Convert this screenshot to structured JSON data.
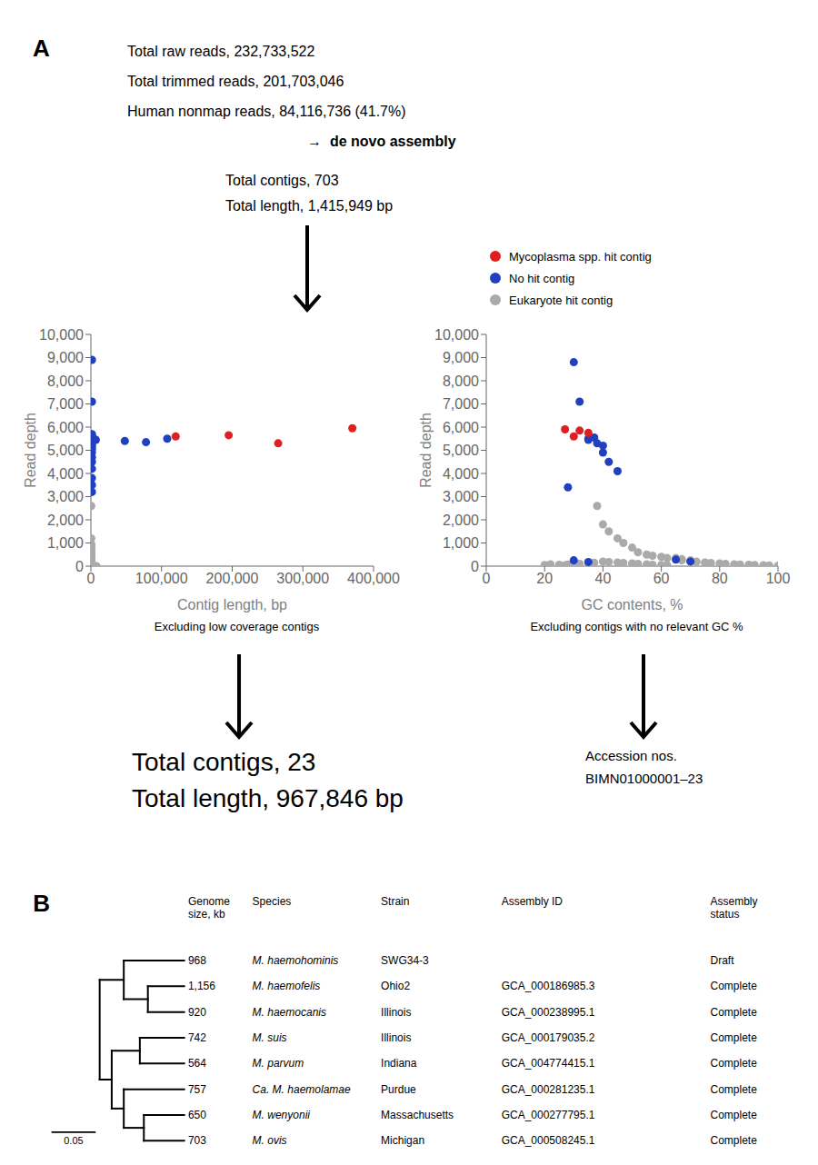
{
  "chart_data": [
    {
      "type": "text",
      "annotations": [
        "A",
        "Total raw reads, 232,733,522",
        "Total trimmed reads, 201,703,046",
        "Human nonmap reads, 84,116,736 (41.7%)",
        "→  de novo assembly",
        "Total contigs, 703",
        "Total length, 1,415,949 bp"
      ]
    },
    {
      "type": "scatter",
      "xlabel": "Contig length, bp",
      "ylabel": "Read depth",
      "annotations": [
        "Excluding low coverage contigs"
      ],
      "grid": false,
      "xlim": [
        0,
        400000
      ],
      "ylim": [
        0,
        10000
      ],
      "xticks": [
        0,
        {
          "value": 100000,
          "label": "100,000"
        },
        {
          "value": 200000,
          "label": "200,000"
        },
        {
          "value": 300000,
          "label": "300,000"
        },
        {
          "value": 400000,
          "label": "400,000"
        }
      ],
      "yticks": [
        0,
        {
          "value": 1000,
          "label": "1,000"
        },
        {
          "value": 2000,
          "label": "2,000"
        },
        {
          "value": 3000,
          "label": "3,000"
        },
        {
          "value": 4000,
          "label": "4,000"
        },
        {
          "value": 5000,
          "label": "5,000"
        },
        {
          "value": 6000,
          "label": "6,000"
        },
        {
          "value": 7000,
          "label": "7,000"
        },
        {
          "value": 8000,
          "label": "8,000"
        },
        {
          "value": 9000,
          "label": "9,000"
        },
        {
          "value": 10000,
          "label": "10,000"
        }
      ],
      "series": [
        {
          "name": "Mycoplasma spp. hit contig",
          "color": "#e02020",
          "x": [
            120000,
            195000,
            265000,
            370000
          ],
          "values": [
            5600,
            5650,
            5300,
            5950
          ]
        },
        {
          "name": "No hit contig",
          "color": "#2040c0",
          "x": [
            1500,
            1500,
            1500,
            1500,
            1500,
            4000,
            7000,
            48000,
            78000,
            108000,
            1500,
            1500,
            1500,
            1500,
            1500,
            1500,
            1500,
            1500,
            1500,
            1500
          ],
          "values": [
            8900,
            7100,
            5700,
            5600,
            5500,
            5500,
            5450,
            5400,
            5350,
            5500,
            5250,
            5150,
            5050,
            4900,
            4700,
            4500,
            4200,
            3800,
            3500,
            3200
          ]
        },
        {
          "name": "Eukaryote hit contig",
          "color": "#aaaaaa",
          "x": [
            500,
            500,
            500,
            500,
            500,
            500,
            500,
            500,
            500,
            500,
            500,
            500,
            500,
            500,
            500,
            500,
            500,
            500,
            500,
            500,
            500,
            500,
            500,
            500,
            500,
            500,
            500,
            500,
            500,
            500,
            500,
            500,
            500,
            500,
            500,
            500,
            500,
            500,
            500,
            500,
            500,
            500,
            500,
            500,
            500,
            500,
            500,
            500,
            500,
            500,
            2000,
            3000,
            4000,
            5000,
            6000,
            8000
          ],
          "values": [
            2600,
            1200,
            950,
            900,
            850,
            800,
            750,
            700,
            650,
            600,
            550,
            500,
            450,
            400,
            370,
            350,
            330,
            310,
            290,
            270,
            250,
            230,
            210,
            190,
            170,
            150,
            130,
            110,
            90,
            70,
            50,
            40,
            30,
            20,
            10,
            8,
            6,
            5,
            4,
            3,
            2,
            2,
            1,
            1,
            1,
            1,
            1,
            1,
            1,
            1,
            1,
            1,
            1,
            1,
            1,
            1
          ]
        }
      ]
    },
    {
      "type": "scatter",
      "xlabel": "GC contents, %",
      "ylabel": "Read depth",
      "annotations": [
        "Excluding contigs with no relevant GC %"
      ],
      "grid": false,
      "legend": "top",
      "xlim": [
        0,
        100
      ],
      "ylim": [
        0,
        10000
      ],
      "xticks": [
        0,
        20,
        40,
        60,
        80,
        100
      ],
      "yticks": [
        0,
        {
          "value": 1000,
          "label": "1,000"
        },
        {
          "value": 2000,
          "label": "2,000"
        },
        {
          "value": 3000,
          "label": "3,000"
        },
        {
          "value": 4000,
          "label": "4,000"
        },
        {
          "value": 5000,
          "label": "5,000"
        },
        {
          "value": 6000,
          "label": "6,000"
        },
        {
          "value": 7000,
          "label": "7,000"
        },
        {
          "value": 8000,
          "label": "8,000"
        },
        {
          "value": 9000,
          "label": "9,000"
        },
        {
          "value": 10000,
          "label": "10,000"
        }
      ],
      "series": [
        {
          "name": "Mycoplasma spp. hit contig",
          "color": "#e02020",
          "x": [
            27,
            30,
            32,
            35
          ],
          "values": [
            5900,
            5600,
            5850,
            5750
          ]
        },
        {
          "name": "No hit contig",
          "color": "#2040c0",
          "x": [
            30,
            32,
            35,
            35,
            37,
            38,
            40,
            40,
            42,
            45,
            28,
            30,
            35,
            65,
            70
          ],
          "values": [
            8800,
            7100,
            5500,
            5450,
            5550,
            5300,
            5200,
            4900,
            4500,
            4100,
            3400,
            250,
            180,
            280,
            200
          ]
        },
        {
          "name": "Eukaryote hit contig",
          "color": "#aaaaaa",
          "x": [
            20,
            22,
            25,
            27,
            28,
            30,
            32,
            35,
            37,
            40,
            42,
            45,
            47,
            50,
            52,
            55,
            57,
            60,
            62,
            65,
            67,
            70,
            72,
            75,
            38,
            40,
            42,
            45,
            47,
            50,
            52,
            55,
            57,
            60,
            62,
            65,
            67,
            70,
            72,
            75,
            77,
            80,
            82,
            85,
            87,
            90,
            92,
            95,
            97,
            100
          ],
          "values": [
            50,
            80,
            60,
            40,
            70,
            90,
            100,
            120,
            150,
            200,
            180,
            160,
            140,
            120,
            100,
            80,
            60,
            50,
            40,
            350,
            300,
            250,
            200,
            150,
            2600,
            1800,
            1500,
            1200,
            1000,
            800,
            600,
            500,
            450,
            400,
            350,
            300,
            250,
            200,
            180,
            160,
            140,
            120,
            100,
            80,
            70,
            60,
            50,
            40,
            30,
            20
          ]
        }
      ]
    },
    {
      "type": "text",
      "annotations": [
        "Total contigs, 23",
        "Total length, 967,846 bp",
        "Accession nos.",
        "BIMN01000001–23"
      ]
    },
    {
      "type": "table",
      "title": "B",
      "columns": [
        "Genome\nsize, kb",
        "Species",
        "Strain",
        "Assembly ID",
        "Assembly\nstatus"
      ],
      "rows": [
        [
          "968",
          "M. haemohominis",
          "SWG34-3",
          null,
          "Draft"
        ],
        [
          "1,156",
          "M. haemofelis",
          "Ohio2",
          "GCA_000186985.3",
          "Complete"
        ],
        [
          "920",
          "M. haemocanis",
          "Illinois",
          "GCA_000238995.1",
          "Complete"
        ],
        [
          "742",
          "M. suis",
          "Illinois",
          "GCA_000179035.2",
          "Complete"
        ],
        [
          "564",
          "M. parvum",
          "Indiana",
          "GCA_004774415.1",
          "Complete"
        ],
        [
          "757",
          "Ca. M. haemolamae",
          "Purdue",
          "GCA_000281235.1",
          "Complete"
        ],
        [
          "650",
          "M. wenyonii",
          "Massachusetts",
          "GCA_000277795.1",
          "Complete"
        ],
        [
          "703",
          "M. ovis",
          "Michigan",
          "GCA_000508245.1",
          "Complete"
        ]
      ],
      "annotations": [
        "0.05"
      ]
    }
  ]
}
